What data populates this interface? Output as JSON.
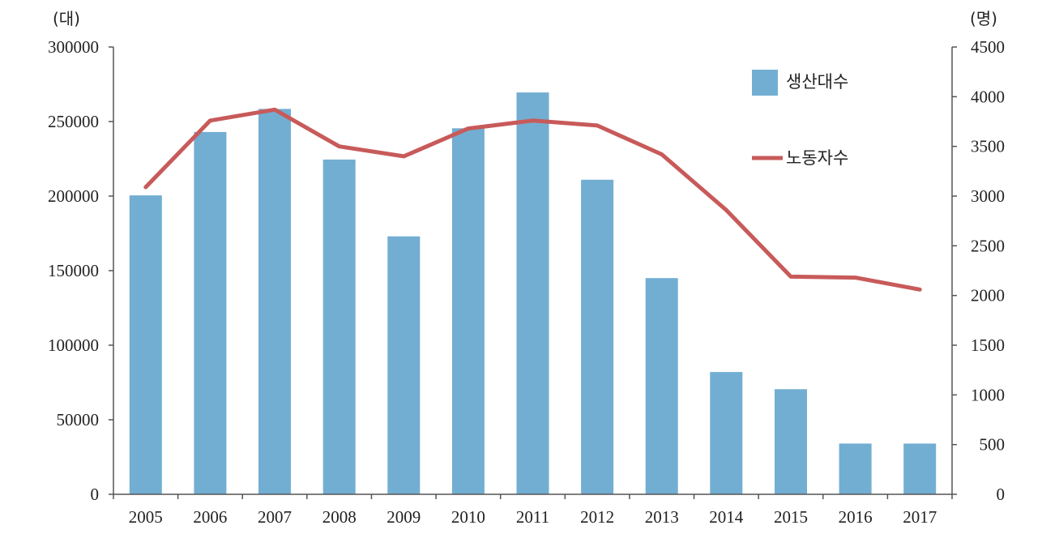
{
  "chart_data": {
    "type": "bar",
    "categories": [
      "2005",
      "2006",
      "2007",
      "2008",
      "2009",
      "2010",
      "2011",
      "2012",
      "2013",
      "2014",
      "2015",
      "2016",
      "2017"
    ],
    "series": [
      {
        "name": "생산대수",
        "type": "bar",
        "axis": "left",
        "color": "#72aed2",
        "values": [
          200500,
          243000,
          258500,
          224500,
          173000,
          245500,
          269500,
          211000,
          145000,
          82000,
          70500,
          34000,
          34000
        ]
      },
      {
        "name": "노동자수",
        "type": "line",
        "axis": "right",
        "color": "#c85a5a",
        "values": [
          3090,
          3760,
          3870,
          3500,
          3400,
          3680,
          3760,
          3710,
          3420,
          2860,
          2190,
          2180,
          2060
        ]
      }
    ],
    "y_left": {
      "unit": "(대)",
      "ylim": [
        0,
        300000
      ],
      "ticks": [
        "0",
        "50000",
        "100000",
        "150000",
        "200000",
        "250000",
        "300000"
      ]
    },
    "y_right": {
      "unit": "(명)",
      "ylim": [
        0,
        4500
      ],
      "ticks": [
        "0",
        "500",
        "1000",
        "1500",
        "2000",
        "2500",
        "3000",
        "3500",
        "4000",
        "4500"
      ]
    },
    "legend": {
      "placement": "top-right",
      "items": [
        "생산대수",
        "노동자수"
      ]
    },
    "grid": false,
    "title": "",
    "xlabel": ""
  }
}
